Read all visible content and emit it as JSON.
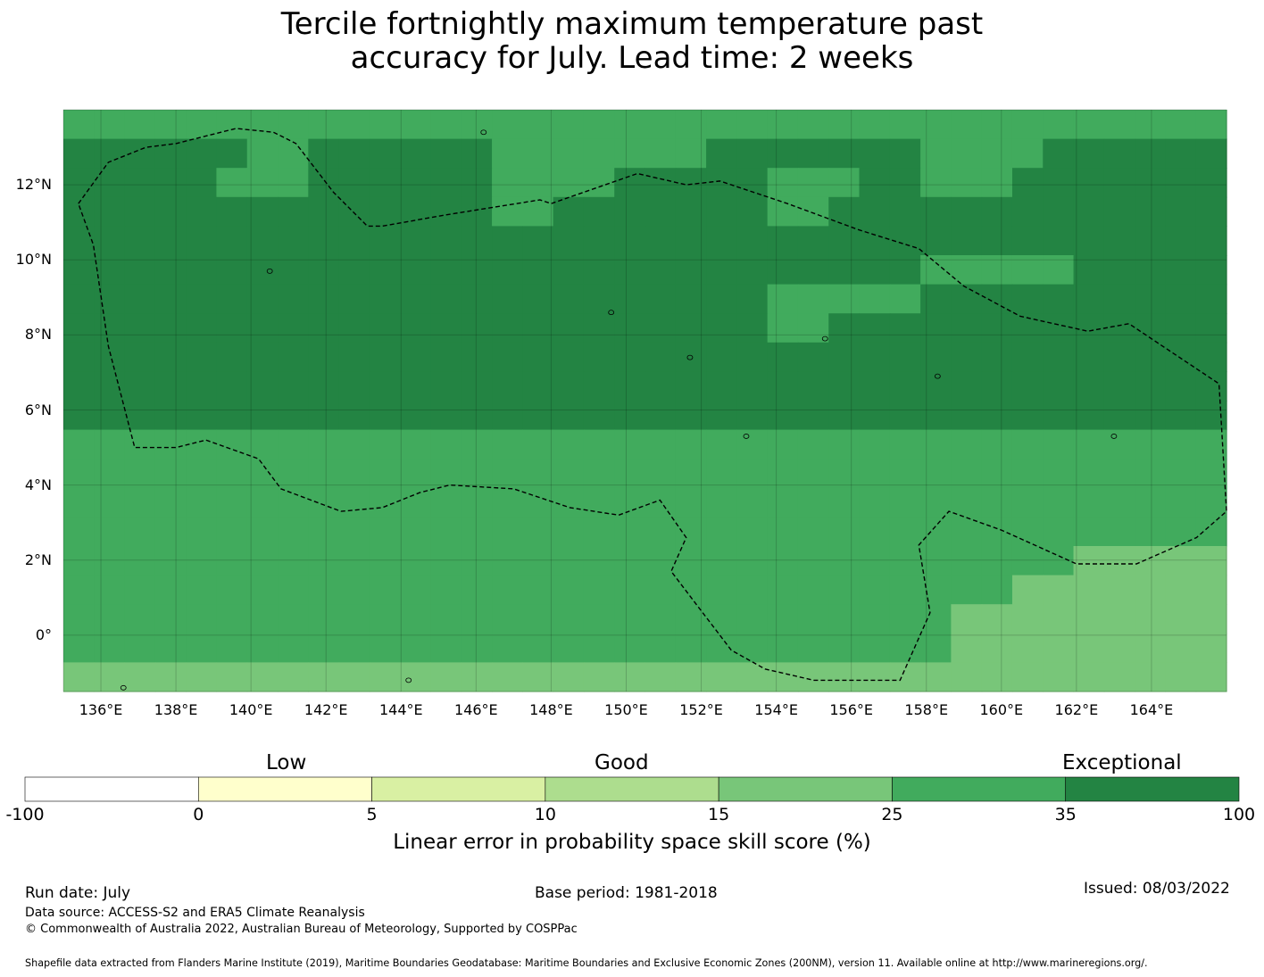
{
  "title_line1": "Tercile fortnightly maximum temperature past",
  "title_line2": "accuracy for July. Lead time: 2 weeks",
  "axis": {
    "lon_labels": [
      "136°E",
      "138°E",
      "140°E",
      "142°E",
      "144°E",
      "146°E",
      "148°E",
      "150°E",
      "152°E",
      "154°E",
      "156°E",
      "158°E",
      "160°E",
      "162°E",
      "164°E"
    ],
    "lat_labels": [
      "12°N",
      "10°N",
      "8°N",
      "6°N",
      "4°N",
      "2°N",
      "0°"
    ],
    "lon_range": [
      135,
      166
    ],
    "lat_range": [
      -1.5,
      14
    ]
  },
  "colorbar": {
    "categories": [
      "Low",
      "Good",
      "Exceptional"
    ],
    "ticks": [
      "-100",
      "0",
      "5",
      "10",
      "15",
      "25",
      "35",
      "100"
    ],
    "colors": [
      "#ffffff",
      "#ffffcc",
      "#d9f0a3",
      "#addd8e",
      "#78c679",
      "#41ab5d",
      "#238443"
    ],
    "label": "Linear error in probability space skill score (%)"
  },
  "footer": {
    "run_date": "Run date: July",
    "base_period": "Base period: 1981-2018",
    "issued": "Issued: 08/03/2022",
    "data_source": "Data source: ACCESS-S2 and ERA5 Climate Reanalysis",
    "copyright": "© Commonwealth of Australia 2022, Australian Bureau of Meteorology, Supported by COSPPac",
    "shapefile": "Shapefile data extracted from Flanders Marine Institute (2019), Maritime Boundaries Geodatabase: Maritime Boundaries and Exclusive Economic Zones (200NM), version 11. Available online at http://www.marineregions.org/."
  },
  "map_data": {
    "cell_size_deg": 0.833,
    "legend_level_meaning": {
      "4": "15 to 25",
      "5": "25 to 35",
      "6": "35 to 100"
    },
    "grid_rows_north_to_south": [
      "55555555555555555555555555555555555555",
      "66666655666666555555566666665555666666",
      "66666555666666555566666555665556666666",
      "66666666666666556666666556666666666666",
      "66666666666666666666666666666666666666",
      "66666666666666666666666666665555566666",
      "66666666666666666666666555556666666666",
      "66666666666666666666666556666666666666",
      "66666666666666666666666666666666666666",
      "66666666666666666666666666666666666666",
      "66666666666666666666666666666666666666",
      "55555555555555555555555555555555555555",
      "55555555555555555555555555555555555555",
      "55555555555555555555555555555555555555",
      "55555555555555555555555555555555555555",
      "55555555555555555555555555555555544444",
      "55555555555555555555555555555554444444",
      "55555555555555555555555555555444444444",
      "55555555555555555555555555555444444444",
      "44444444444444444444444444444444444444"
    ],
    "eez_boundary_lonlat": [
      [
        135.4,
        11.5
      ],
      [
        136.2,
        12.6
      ],
      [
        137.2,
        13.0
      ],
      [
        138.0,
        13.1
      ],
      [
        139.6,
        13.5
      ],
      [
        140.6,
        13.4
      ],
      [
        141.2,
        13.1
      ],
      [
        142.2,
        11.8
      ],
      [
        143.1,
        10.9
      ],
      [
        143.5,
        10.9
      ],
      [
        145.2,
        11.2
      ],
      [
        147.7,
        11.6
      ],
      [
        148.0,
        11.5
      ],
      [
        150.3,
        12.3
      ],
      [
        151.6,
        12.0
      ],
      [
        152.5,
        12.1
      ],
      [
        154.3,
        11.5
      ],
      [
        156.2,
        10.8
      ],
      [
        157.8,
        10.3
      ],
      [
        159.0,
        9.3
      ],
      [
        160.5,
        8.5
      ],
      [
        162.3,
        8.1
      ],
      [
        163.4,
        8.3
      ],
      [
        165.8,
        6.7
      ],
      [
        166.0,
        3.3
      ],
      [
        165.2,
        2.6
      ],
      [
        163.6,
        1.9
      ],
      [
        162.0,
        1.9
      ],
      [
        160.0,
        2.8
      ],
      [
        158.6,
        3.3
      ],
      [
        157.8,
        2.4
      ],
      [
        158.1,
        0.6
      ],
      [
        157.3,
        -1.2
      ],
      [
        155.0,
        -1.2
      ],
      [
        153.7,
        -0.9
      ],
      [
        152.8,
        -0.4
      ],
      [
        151.2,
        1.7
      ],
      [
        151.6,
        2.6
      ],
      [
        150.9,
        3.6
      ],
      [
        149.8,
        3.2
      ],
      [
        148.5,
        3.4
      ],
      [
        147.0,
        3.9
      ],
      [
        145.3,
        4.0
      ],
      [
        144.5,
        3.8
      ],
      [
        143.5,
        3.4
      ],
      [
        142.4,
        3.3
      ],
      [
        140.8,
        3.9
      ],
      [
        140.2,
        4.7
      ],
      [
        138.8,
        5.2
      ],
      [
        138.0,
        5.0
      ],
      [
        136.9,
        5.0
      ],
      [
        136.2,
        7.7
      ],
      [
        135.8,
        10.4
      ],
      [
        135.4,
        11.5
      ]
    ]
  }
}
